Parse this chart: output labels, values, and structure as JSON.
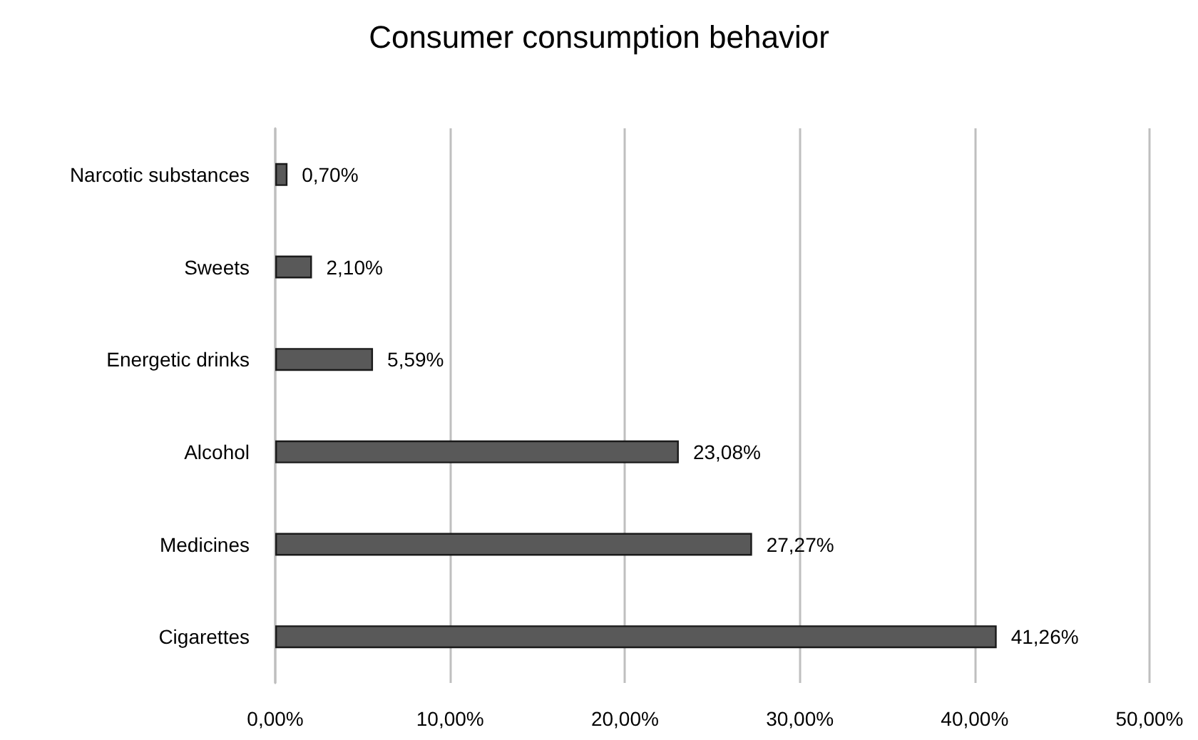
{
  "chart_data": {
    "type": "bar",
    "orientation": "horizontal",
    "title": "Consumer consumption behavior",
    "categories": [
      "Narcotic substances",
      "Sweets",
      "Energetic drinks",
      "Alcohol",
      "Medicines",
      "Cigarettes"
    ],
    "values": [
      0.7,
      2.1,
      5.59,
      23.08,
      27.27,
      41.26
    ],
    "value_labels": [
      "0,70%",
      "2,10%",
      "5,59%",
      "23,08%",
      "27,27%",
      "41,26%"
    ],
    "color": "#595959",
    "xlim": [
      0,
      50
    ],
    "xticks": [
      {
        "value": 0,
        "label": "0,00%"
      },
      {
        "value": 10,
        "label": "10,00%"
      },
      {
        "value": 20,
        "label": "20,00%"
      },
      {
        "value": 30,
        "label": "30,00%"
      },
      {
        "value": 40,
        "label": "40,00%"
      },
      {
        "value": 50,
        "label": "50,00%"
      }
    ],
    "grid": "x"
  }
}
